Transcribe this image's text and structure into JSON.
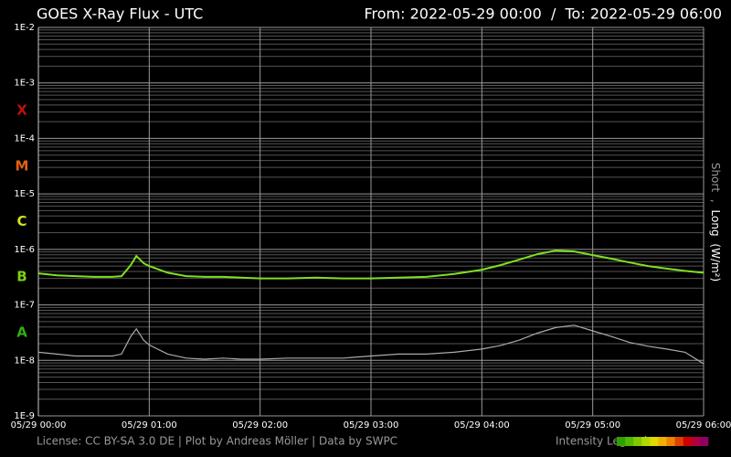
{
  "chart_data": {
    "type": "line",
    "title": "GOES X-Ray Flux - UTC",
    "subtitle": "From: 2022-05-29 00:00  /  To: 2022-05-29 06:00",
    "footer": "License: CC BY-SA 3.0 DE | Plot by Andreas Möller | Data by SWPC",
    "ylabel": "(W/m²)",
    "legend_separator": ",",
    "log_scale": true,
    "grid": true,
    "minor_grid": true,
    "x": [
      "05/29 00:00",
      "05/29 00:10",
      "05/29 00:20",
      "05/29 00:30",
      "05/29 00:40",
      "05/29 00:45",
      "05/29 00:50",
      "05/29 00:53",
      "05/29 00:57",
      "05/29 01:00",
      "05/29 01:10",
      "05/29 01:20",
      "05/29 01:30",
      "05/29 01:40",
      "05/29 01:50",
      "05/29 02:00",
      "05/29 02:15",
      "05/29 02:30",
      "05/29 02:45",
      "05/29 03:00",
      "05/29 03:15",
      "05/29 03:30",
      "05/29 03:45",
      "05/29 04:00",
      "05/29 04:10",
      "05/29 04:20",
      "05/29 04:30",
      "05/29 04:40",
      "05/29 04:50",
      "05/29 05:00",
      "05/29 05:10",
      "05/29 05:20",
      "05/29 05:30",
      "05/29 05:40",
      "05/29 05:50",
      "05/29 06:00"
    ],
    "series": [
      {
        "name": "Short",
        "color": "#aaaaaa",
        "values": [
          1.4e-08,
          1.3e-08,
          1.2e-08,
          1.2e-08,
          1.2e-08,
          1.3e-08,
          2.7e-08,
          3.7e-08,
          2.3e-08,
          1.9e-08,
          1.3e-08,
          1.1e-08,
          1.05e-08,
          1.1e-08,
          1.05e-08,
          1.05e-08,
          1.1e-08,
          1.1e-08,
          1.1e-08,
          1.2e-08,
          1.3e-08,
          1.3e-08,
          1.4e-08,
          1.6e-08,
          1.85e-08,
          2.3e-08,
          3.1e-08,
          3.9e-08,
          4.3e-08,
          3.4e-08,
          2.7e-08,
          2.1e-08,
          1.8e-08,
          1.6e-08,
          1.4e-08,
          8.7e-09
        ]
      },
      {
        "name": "Long",
        "color": "#80e020",
        "values": [
          3.7e-07,
          3.4e-07,
          3.3e-07,
          3.2e-07,
          3.2e-07,
          3.3e-07,
          5.2e-07,
          7.6e-07,
          5.6e-07,
          5e-07,
          3.8e-07,
          3.3e-07,
          3.2e-07,
          3.2e-07,
          3.1e-07,
          3e-07,
          3e-07,
          3.1e-07,
          3e-07,
          3e-07,
          3.1e-07,
          3.2e-07,
          3.6e-07,
          4.3e-07,
          5.2e-07,
          6.5e-07,
          8.2e-07,
          9.5e-07,
          9.2e-07,
          7.9e-07,
          6.8e-07,
          5.8e-07,
          5e-07,
          4.5e-07,
          4.1e-07,
          3.8e-07
        ]
      }
    ],
    "xlim": [
      "05/29 00:00",
      "05/29 06:00"
    ],
    "xticks": [
      "05/29 00:00",
      "05/29 01:00",
      "05/29 02:00",
      "05/29 03:00",
      "05/29 04:00",
      "05/29 05:00",
      "05/29 06:00"
    ],
    "ylim": [
      1e-09,
      0.01
    ],
    "yticks": [
      {
        "value": 0.01,
        "label": "1E-2"
      },
      {
        "value": 0.001,
        "label": "1E-3"
      },
      {
        "value": 0.0001,
        "label": "1E-4"
      },
      {
        "value": 1e-05,
        "label": "1E-5"
      },
      {
        "value": 1e-06,
        "label": "1E-6"
      },
      {
        "value": 1e-07,
        "label": "1E-7"
      },
      {
        "value": 1e-08,
        "label": "1E-8"
      },
      {
        "value": 1e-09,
        "label": "1E-9"
      }
    ],
    "classes": [
      {
        "label": "X",
        "color": "#c01010"
      },
      {
        "label": "M",
        "color": "#e06010"
      },
      {
        "label": "C",
        "color": "#d0e020"
      },
      {
        "label": "B",
        "color": "#80d010"
      },
      {
        "label": "A",
        "color": "#30b010"
      }
    ],
    "intensity_legend": {
      "label": "Intensity Legend",
      "colors": [
        "#30a000",
        "#50b800",
        "#80c800",
        "#b0d800",
        "#e0d800",
        "#f0b000",
        "#f08000",
        "#e04000",
        "#d00000",
        "#b00040",
        "#900060"
      ]
    }
  }
}
